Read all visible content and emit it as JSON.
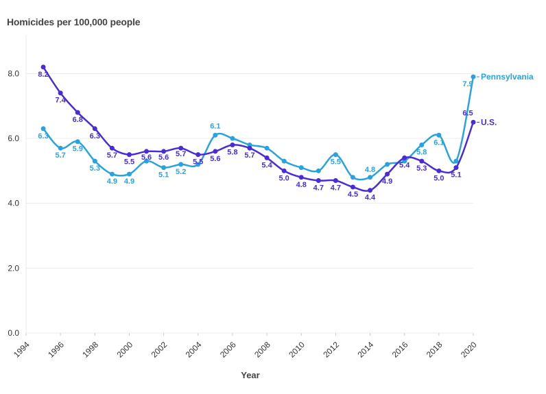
{
  "chart_data": {
    "type": "line",
    "title": "Homicides per 100,000 people",
    "xlabel": "Year",
    "ylabel": "",
    "x": [
      1995,
      1996,
      1997,
      1998,
      1999,
      2000,
      2001,
      2002,
      2003,
      2004,
      2005,
      2006,
      2007,
      2008,
      2009,
      2010,
      2011,
      2012,
      2013,
      2014,
      2015,
      2016,
      2017,
      2018,
      2019,
      2020
    ],
    "xlim": [
      1994,
      2020
    ],
    "xticks": [
      "1994",
      "1996",
      "1998",
      "2000",
      "2002",
      "2004",
      "2006",
      "2008",
      "2010",
      "2012",
      "2014",
      "2016",
      "2018",
      "2020"
    ],
    "ylim": [
      0,
      9
    ],
    "yticks": [
      "0.0",
      "2.0",
      "4.0",
      "6.0",
      "8.0"
    ],
    "grid": true,
    "series": [
      {
        "name": "Pennsylvania",
        "color": "#29a3e0",
        "values": [
          6.3,
          5.7,
          5.9,
          5.3,
          4.9,
          4.9,
          5.3,
          5.1,
          5.2,
          5.2,
          6.1,
          6.0,
          5.8,
          5.7,
          5.3,
          5.1,
          5.0,
          5.5,
          4.8,
          4.8,
          5.2,
          5.3,
          5.8,
          6.1,
          5.3,
          7.9
        ],
        "labels": [
          "6.3",
          "5.7",
          "5.9",
          "5.3",
          "4.9",
          "4.9",
          "",
          "5.1",
          "5.2",
          "",
          "6.1",
          "",
          "",
          "",
          "",
          "",
          "",
          "5.5",
          "",
          "4.8",
          "",
          "",
          "5.8",
          "6.1",
          "",
          "7.9"
        ]
      },
      {
        "name": "U.S.",
        "color": "#4b2bd6",
        "values": [
          8.2,
          7.4,
          6.8,
          6.3,
          5.7,
          5.5,
          5.6,
          5.6,
          5.7,
          5.5,
          5.6,
          5.8,
          5.7,
          5.4,
          5.0,
          4.8,
          4.7,
          4.7,
          4.5,
          4.4,
          4.9,
          5.4,
          5.3,
          5.0,
          5.1,
          6.5
        ],
        "labels": [
          "8.2",
          "7.4",
          "6.8",
          "6.3",
          "5.7",
          "5.5",
          "5.6",
          "5.6",
          "5.7",
          "5.5",
          "5.6",
          "5.8",
          "5.7",
          "5.4",
          "5.0",
          "4.8",
          "4.7",
          "4.7",
          "4.5",
          "4.4",
          "4.9",
          "5.4",
          "5.3",
          "5.0",
          "5.1",
          "6.5"
        ]
      }
    ]
  }
}
